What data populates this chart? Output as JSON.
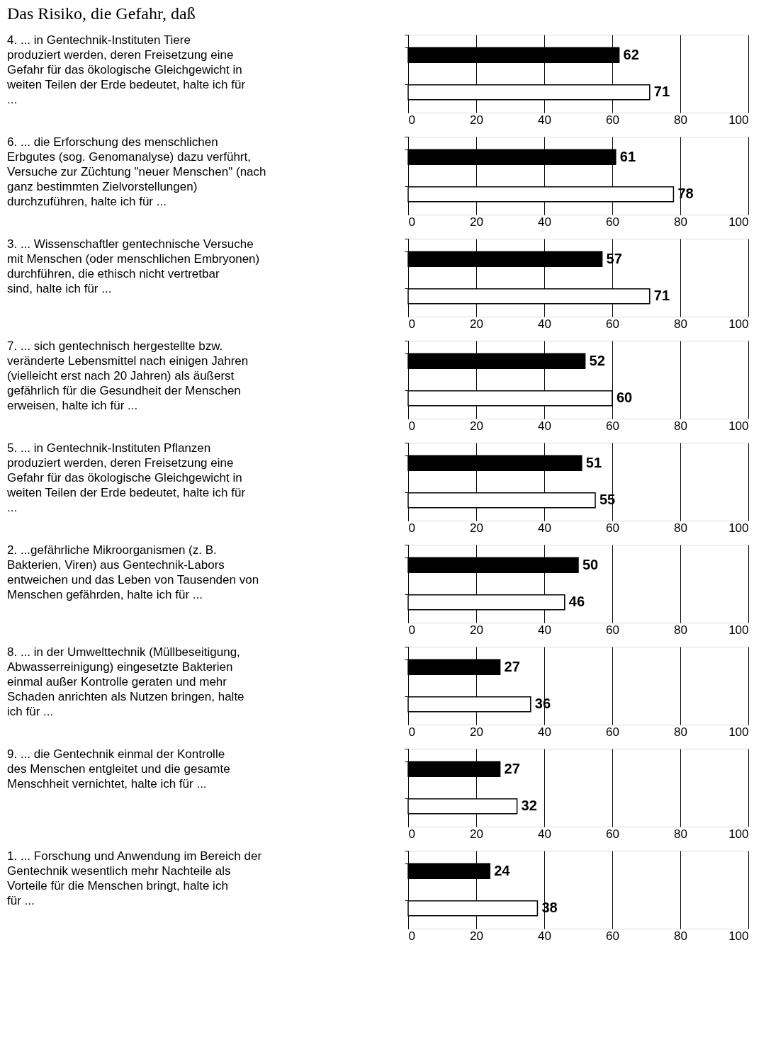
{
  "chart_data": [
    {
      "type": "other",
      "title": "Das Risiko, die Gefahr, daß"
    },
    {
      "type": "bar",
      "orientation": "horizontal",
      "annotations": [
        "4. ... in Gentechnik-Instituten Tiere produziert werden, deren Freisetzung eine Gefahr für das ökologische Gleichgewicht in weiten Teilen der Erde bedeutet, halte ich für ..."
      ],
      "categories": [
        null,
        null
      ],
      "values": [
        62,
        71
      ],
      "colors": [
        "#000000",
        "#ffffff"
      ],
      "xlim": [
        0,
        100
      ],
      "xticks": [
        0,
        20,
        40,
        60,
        80,
        100
      ],
      "grid": "x",
      "data_labels": true
    },
    {
      "type": "bar",
      "orientation": "horizontal",
      "annotations": [
        "6. ... die Erforschung des menschlichen Erbgutes (sog. Genomanalyse) dazu verführt, Versuche zur Züchtung \"neuer Menschen\" (nach ganz bestimmten Zielvorstellungen) durchzuführen, halte ich für ..."
      ],
      "categories": [
        null,
        null
      ],
      "values": [
        61,
        78
      ],
      "colors": [
        "#000000",
        "#ffffff"
      ],
      "xlim": [
        0,
        100
      ],
      "xticks": [
        0,
        20,
        40,
        60,
        80,
        100
      ],
      "grid": "x",
      "data_labels": true
    },
    {
      "type": "bar",
      "orientation": "horizontal",
      "annotations": [
        "3. ... Wissenschaftler gentechnische Versuche mit Menschen (oder menschlichen Embryonen) durchführen, die ethisch nicht vertretbar sind, halte ich für ..."
      ],
      "categories": [
        null,
        null
      ],
      "values": [
        57,
        71
      ],
      "colors": [
        "#000000",
        "#ffffff"
      ],
      "xlim": [
        0,
        100
      ],
      "xticks": [
        0,
        20,
        40,
        60,
        80,
        100
      ],
      "grid": "x",
      "data_labels": true
    },
    {
      "type": "bar",
      "orientation": "horizontal",
      "annotations": [
        "7. ... sich gentechnisch hergestellte bzw. veränderte Lebensmittel nach einigen Jahren (vielleicht erst nach 20 Jahren) als äußerst gefährlich für die Gesundheit der Menschen erweisen, halte ich für ..."
      ],
      "categories": [
        null,
        null
      ],
      "values": [
        52,
        60
      ],
      "colors": [
        "#000000",
        "#ffffff"
      ],
      "xlim": [
        0,
        100
      ],
      "xticks": [
        0,
        20,
        40,
        60,
        80,
        100
      ],
      "grid": "x",
      "data_labels": true
    },
    {
      "type": "bar",
      "orientation": "horizontal",
      "annotations": [
        "5. ... in Gentechnik-Instituten Pflanzen produziert werden, deren Freisetzung eine Gefahr für das ökologische Gleichgewicht in weiten Teilen der Erde bedeutet, halte ich für ..."
      ],
      "categories": [
        null,
        null
      ],
      "values": [
        51,
        55
      ],
      "colors": [
        "#000000",
        "#ffffff"
      ],
      "xlim": [
        0,
        100
      ],
      "xticks": [
        0,
        20,
        40,
        60,
        80,
        100
      ],
      "grid": "x",
      "data_labels": true
    },
    {
      "type": "bar",
      "orientation": "horizontal",
      "annotations": [
        "2. ...gefährliche Mikroorganismen (z. B. Bakterien, Viren) aus Gentechnik-Labors entweichen und das Leben von Tausenden von Menschen gefährden, halte ich für ..."
      ],
      "categories": [
        null,
        null
      ],
      "values": [
        50,
        46
      ],
      "colors": [
        "#000000",
        "#ffffff"
      ],
      "xlim": [
        0,
        100
      ],
      "xticks": [
        0,
        20,
        40,
        60,
        80,
        100
      ],
      "grid": "x",
      "data_labels": true
    },
    {
      "type": "bar",
      "orientation": "horizontal",
      "annotations": [
        "8.  ... in der Umwelttechnik (Müllbeseitigung, Abwasserreinigung) eingesetzte Bakterien einmal außer Kontrolle geraten und mehr Schaden anrichten als Nutzen bringen, halte ich für ..."
      ],
      "categories": [
        null,
        null
      ],
      "values": [
        27,
        36
      ],
      "colors": [
        "#000000",
        "#ffffff"
      ],
      "xlim": [
        0,
        100
      ],
      "xticks": [
        0,
        20,
        40,
        60,
        80,
        100
      ],
      "grid": "x",
      "data_labels": true
    },
    {
      "type": "bar",
      "orientation": "horizontal",
      "annotations": [
        "9.  ... die Gentechnik einmal der Kontrolle des Menschen entgleitet und die gesamte Menschheit vernichtet, halte ich für ..."
      ],
      "categories": [
        null,
        null
      ],
      "values": [
        27,
        32
      ],
      "colors": [
        "#000000",
        "#ffffff"
      ],
      "xlim": [
        0,
        100
      ],
      "xticks": [
        0,
        20,
        40,
        60,
        80,
        100
      ],
      "grid": "x",
      "data_labels": true
    },
    {
      "type": "bar",
      "orientation": "horizontal",
      "annotations": [
        "1. ... Forschung und Anwendung im Bereich der Gentechnik wesentlich mehr Nachteile als Vorteile für die Menschen bringt, halte ich für ..."
      ],
      "categories": [
        null,
        null
      ],
      "values": [
        24,
        38
      ],
      "colors": [
        "#000000",
        "#ffffff"
      ],
      "xlim": [
        0,
        100
      ],
      "xticks": [
        0,
        20,
        40,
        60,
        80,
        100
      ],
      "grid": "x",
      "data_labels": true
    }
  ]
}
